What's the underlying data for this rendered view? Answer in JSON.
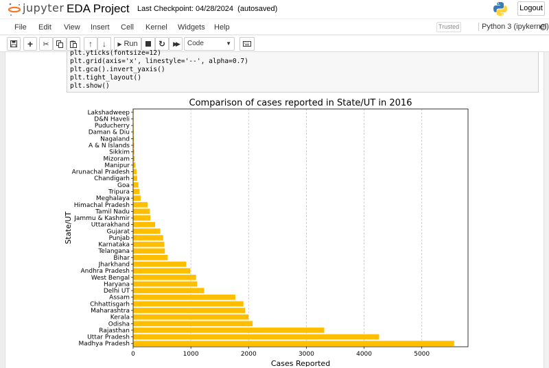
{
  "header": {
    "logo_text": "jupyter",
    "notebook_name": "EDA Project",
    "checkpoint_label": "Last Checkpoint: 04/28/2024",
    "save_status": "(autosaved)",
    "logout_label": "Logout"
  },
  "menubar": {
    "items": [
      "File",
      "Edit",
      "View",
      "Insert",
      "Cell",
      "Kernel",
      "Widgets",
      "Help"
    ],
    "trusted_label": "Trusted",
    "kernel_label": "Python 3 (ipykernel)"
  },
  "toolbar": {
    "run_label": "Run",
    "cell_type": "Code"
  },
  "code_lines": [
    "plt.yticks(fontsize=12)",
    "plt.grid(axis='x', linestyle='--', alpha=0.7)",
    "plt.gca().invert_yaxis()",
    "plt.tight_layout()",
    "plt.show()"
  ],
  "chart_data": {
    "type": "bar",
    "orientation": "horizontal",
    "title": "Comparison of cases reported in State/UT in 2016",
    "xlabel": "Cases Reported",
    "ylabel": "State/UT",
    "xlim": [
      0,
      5800
    ],
    "xticks": [
      0,
      1000,
      2000,
      3000,
      4000,
      5000
    ],
    "grid": "x dashed",
    "color": "#ffbf00",
    "categories": [
      "Lakshadweep",
      "D&N Haveli",
      "Puducherry",
      "Daman & Diu",
      "Nagaland",
      "A & N Islands",
      "Sikkim",
      "Mizoram",
      "Manipur",
      "Arunachal Pradesh",
      "Chandigarh",
      "Goa",
      "Tripura",
      "Meghalaya",
      "Himachal Pradesh",
      "Tamil Nadu",
      "Jammu & Kashmir",
      "Uttarakhand",
      "Gujarat",
      "Punjab",
      "Karnataka",
      "Telangana",
      "Bihar",
      "Jharkhand",
      "Andhra Pradesh",
      "West Bengal",
      "Haryana",
      "Delhi UT",
      "Assam",
      "Chhattisgarh",
      "Maharashtra",
      "Kerala",
      "Odisha",
      "Rajasthan",
      "Uttar Pradesh",
      "Madhya Pradesh"
    ],
    "values": [
      0,
      5,
      8,
      10,
      12,
      18,
      20,
      25,
      40,
      60,
      70,
      90,
      110,
      130,
      250,
      290,
      300,
      380,
      470,
      520,
      540,
      550,
      600,
      920,
      990,
      1090,
      1110,
      1230,
      1770,
      1910,
      1940,
      2000,
      2070,
      3310,
      4260,
      5560
    ]
  }
}
